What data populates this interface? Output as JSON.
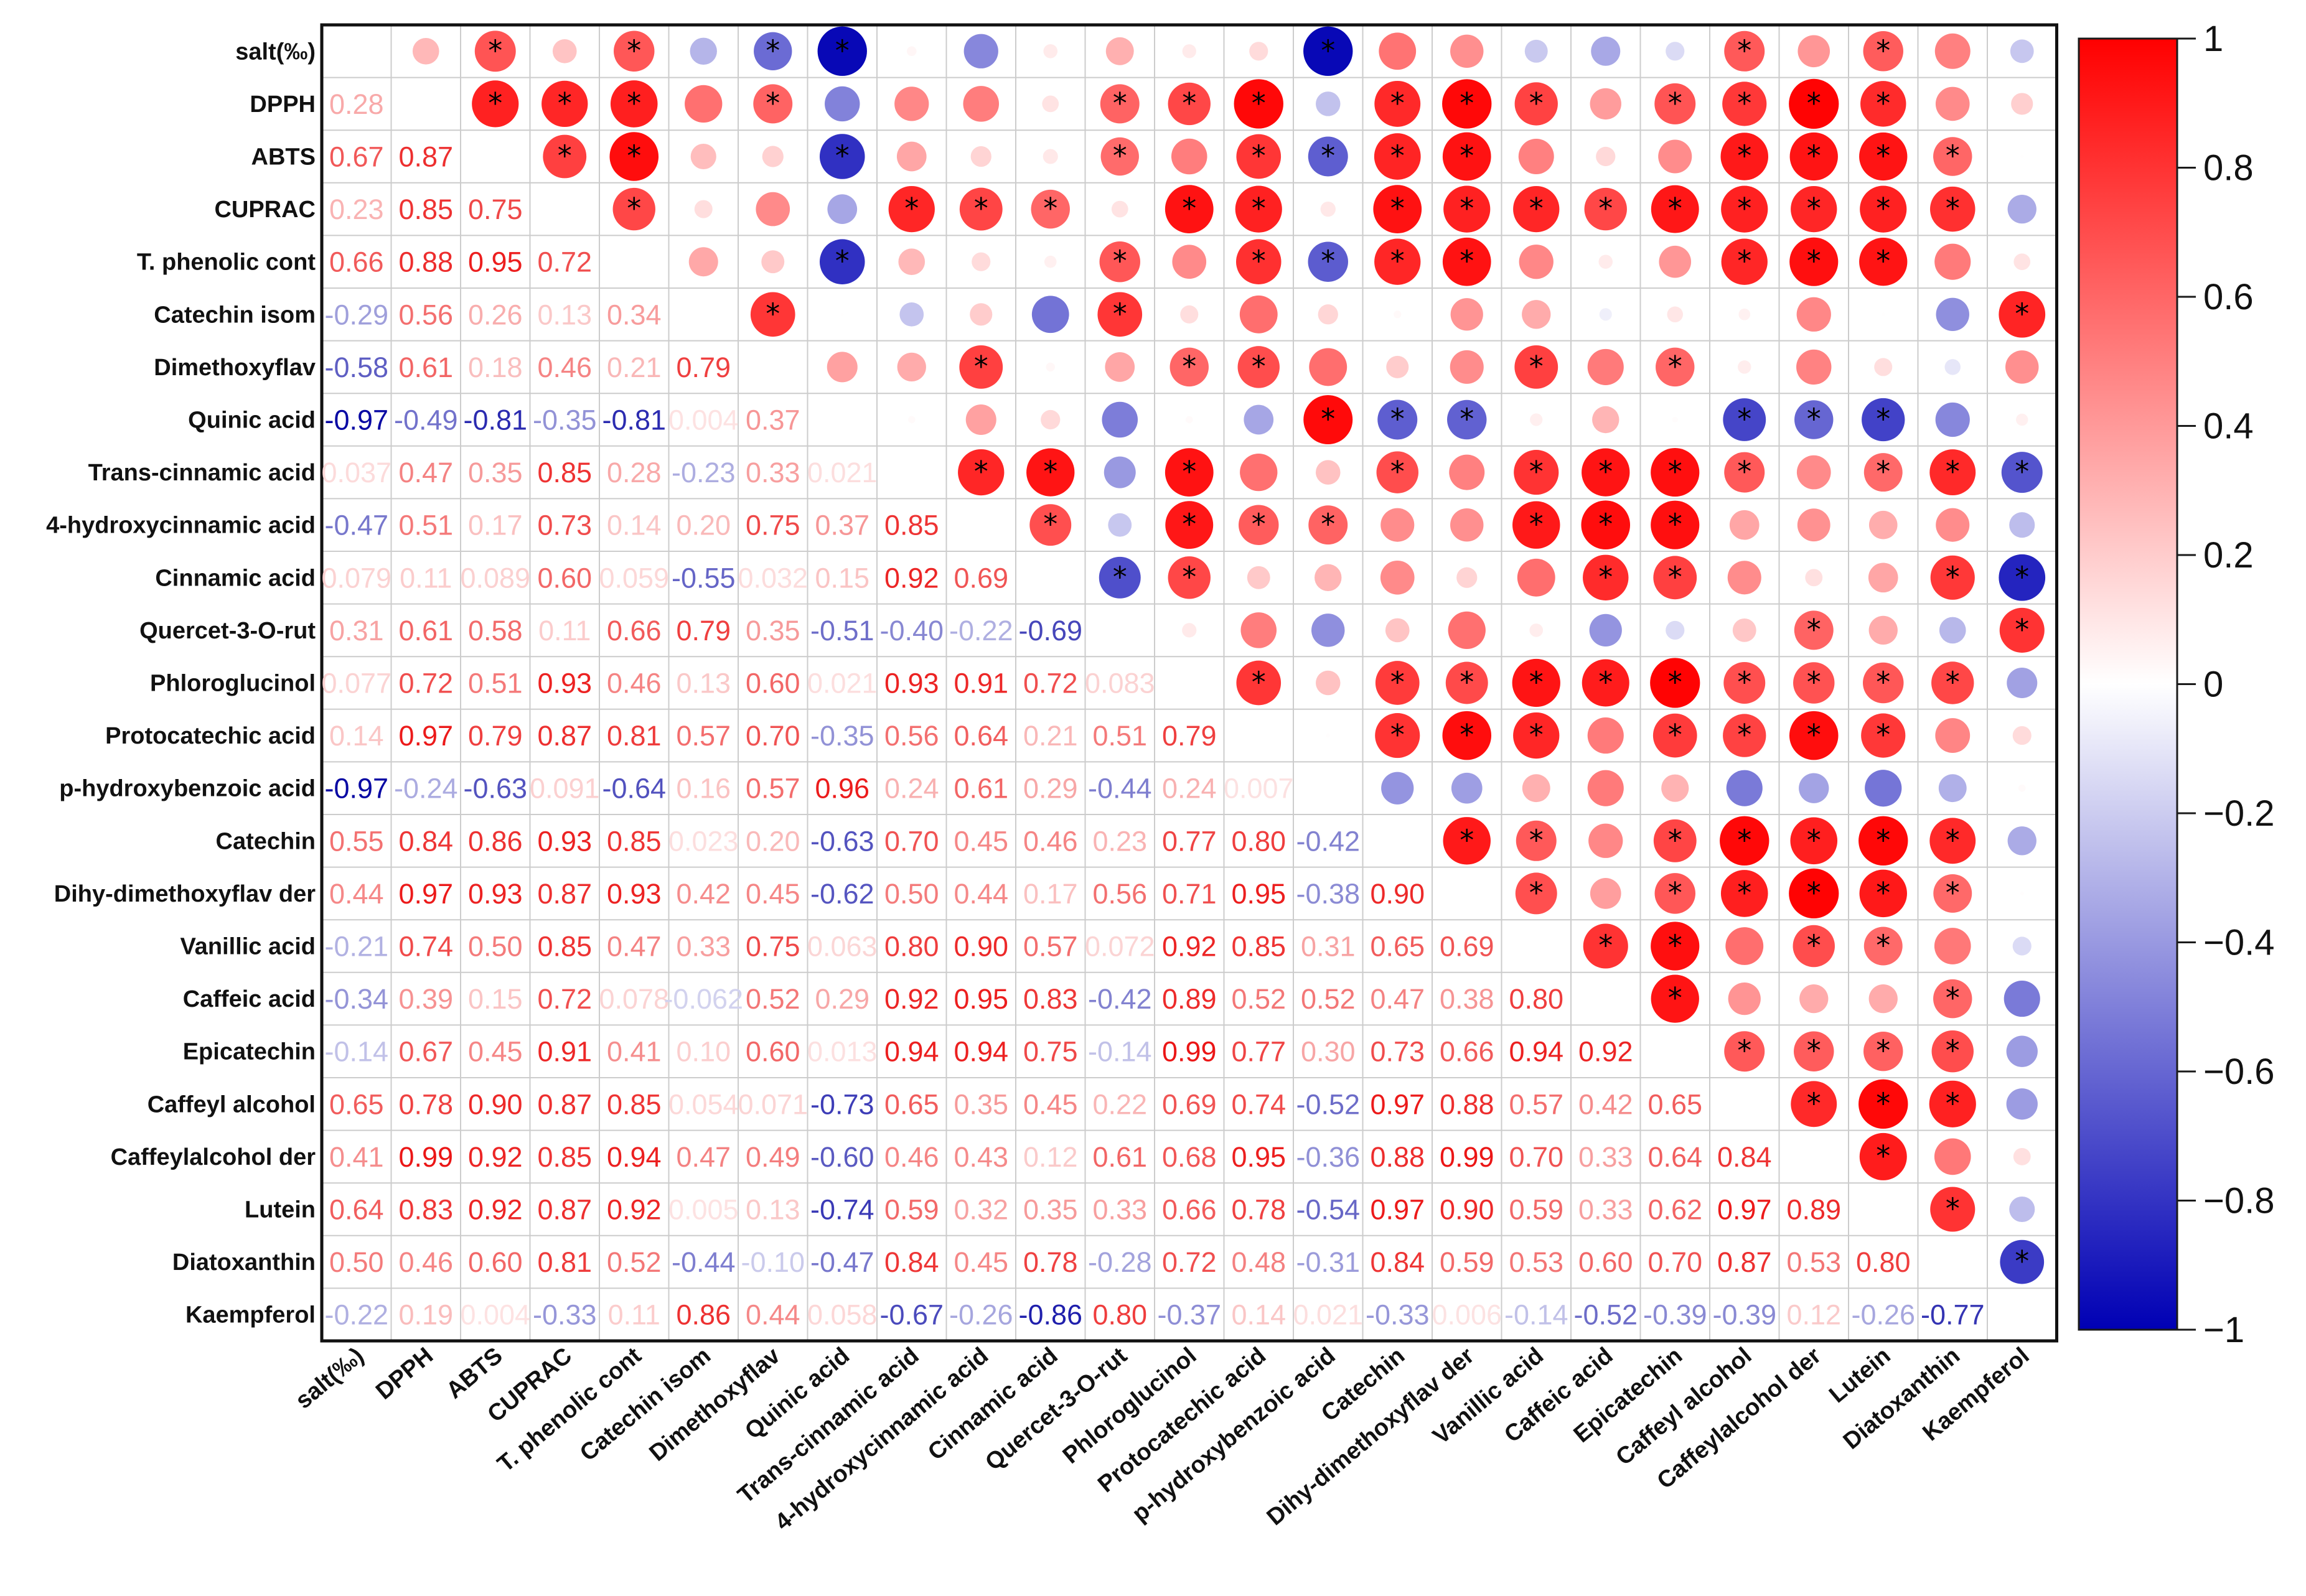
{
  "chart_data": {
    "type": "heatmap",
    "title": "",
    "variables": [
      "salt(‰)",
      "DPPH",
      "ABTS",
      "CUPRAC",
      "T. phenolic cont",
      "Catechin isom",
      "Dimethoxyflav",
      "Quinic acid",
      "Trans-cinnamic acid",
      "4-hydroxycinnamic acid",
      "Cinnamic acid",
      "Quercet-3-O-rut",
      "Phloroglucinol",
      "Protocatechic acid",
      "p-hydroxybenzoic acid",
      "Catechin",
      "Dihy-dimethoxyflav der",
      "Vanillic acid",
      "Caffeic acid",
      "Epicatechin",
      "Caffeyl alcohol",
      "Caffeylalcohol der",
      "Lutein",
      "Diatoxanthin",
      "Kaempferol"
    ],
    "lower_triangle_labels": [
      [],
      [
        "0.28"
      ],
      [
        "0.67",
        "0.87"
      ],
      [
        "0.23",
        "0.85",
        "0.75"
      ],
      [
        "0.66",
        "0.88",
        "0.95",
        "0.72"
      ],
      [
        "-0.29",
        "0.56",
        "0.26",
        "0.13",
        "0.34"
      ],
      [
        "-0.58",
        "0.61",
        "0.18",
        "0.46",
        "0.21",
        "0.79"
      ],
      [
        "-0.97",
        "-0.49",
        "-0.81",
        "-0.35",
        "-0.81",
        "0.004",
        "0.37"
      ],
      [
        "0.037",
        "0.47",
        "0.35",
        "0.85",
        "0.28",
        "-0.23",
        "0.33",
        "0.021"
      ],
      [
        "-0.47",
        "0.51",
        "0.17",
        "0.73",
        "0.14",
        "0.20",
        "0.75",
        "0.37",
        "0.85"
      ],
      [
        "0.079",
        "0.11",
        "0.089",
        "0.60",
        "0.059",
        "-0.55",
        "0.032",
        "0.15",
        "0.92",
        "0.69"
      ],
      [
        "0.31",
        "0.61",
        "0.58",
        "0.11",
        "0.66",
        "0.79",
        "0.35",
        "-0.51",
        "-0.40",
        "-0.22",
        "-0.69"
      ],
      [
        "0.077",
        "0.72",
        "0.51",
        "0.93",
        "0.46",
        "0.13",
        "0.60",
        "0.021",
        "0.93",
        "0.91",
        "0.72",
        "0.083"
      ],
      [
        "0.14",
        "0.97",
        "0.79",
        "0.87",
        "0.81",
        "0.57",
        "0.70",
        "-0.35",
        "0.56",
        "0.64",
        "0.21",
        "0.51",
        "0.79"
      ],
      [
        "-0.97",
        "-0.24",
        "-0.63",
        "0.091",
        "-0.64",
        "0.16",
        "0.57",
        "0.96",
        "0.24",
        "0.61",
        "0.29",
        "-0.44",
        "0.24",
        "0.007"
      ],
      [
        "0.55",
        "0.84",
        "0.86",
        "0.93",
        "0.85",
        "0.023",
        "0.20",
        "-0.63",
        "0.70",
        "0.45",
        "0.46",
        "0.23",
        "0.77",
        "0.80",
        "-0.42"
      ],
      [
        "0.44",
        "0.97",
        "0.93",
        "0.87",
        "0.93",
        "0.42",
        "0.45",
        "-0.62",
        "0.50",
        "0.44",
        "0.17",
        "0.56",
        "0.71",
        "0.95",
        "-0.38",
        "0.90"
      ],
      [
        "-0.21",
        "0.74",
        "0.50",
        "0.85",
        "0.47",
        "0.33",
        "0.75",
        "0.063",
        "0.80",
        "0.90",
        "0.57",
        "0.072",
        "0.92",
        "0.85",
        "0.31",
        "0.65",
        "0.69"
      ],
      [
        "-0.34",
        "0.39",
        "0.15",
        "0.72",
        "0.078",
        "-0.062",
        "0.52",
        "0.29",
        "0.92",
        "0.95",
        "0.83",
        "-0.42",
        "0.89",
        "0.52",
        "0.52",
        "0.47",
        "0.38",
        "0.80"
      ],
      [
        "-0.14",
        "0.67",
        "0.45",
        "0.91",
        "0.41",
        "0.10",
        "0.60",
        "0.013",
        "0.94",
        "0.94",
        "0.75",
        "-0.14",
        "0.99",
        "0.77",
        "0.30",
        "0.73",
        "0.66",
        "0.94",
        "0.92"
      ],
      [
        "0.65",
        "0.78",
        "0.90",
        "0.87",
        "0.85",
        "0.054",
        "0.071",
        "-0.73",
        "0.65",
        "0.35",
        "0.45",
        "0.22",
        "0.69",
        "0.74",
        "-0.52",
        "0.97",
        "0.88",
        "0.57",
        "0.42",
        "0.65"
      ],
      [
        "0.41",
        "0.99",
        "0.92",
        "0.85",
        "0.94",
        "0.47",
        "0.49",
        "-0.60",
        "0.46",
        "0.43",
        "0.12",
        "0.61",
        "0.68",
        "0.95",
        "-0.36",
        "0.88",
        "0.99",
        "0.70",
        "0.33",
        "0.64",
        "0.84"
      ],
      [
        "0.64",
        "0.83",
        "0.92",
        "0.87",
        "0.92",
        "0.005",
        "0.13",
        "-0.74",
        "0.59",
        "0.32",
        "0.35",
        "0.33",
        "0.66",
        "0.78",
        "-0.54",
        "0.97",
        "0.90",
        "0.59",
        "0.33",
        "0.62",
        "0.97",
        "0.89"
      ],
      [
        "0.50",
        "0.46",
        "0.60",
        "0.81",
        "0.52",
        "-0.44",
        "-0.10",
        "-0.47",
        "0.84",
        "0.45",
        "0.78",
        "-0.28",
        "0.72",
        "0.48",
        "-0.31",
        "0.84",
        "0.59",
        "0.53",
        "0.60",
        "0.70",
        "0.87",
        "0.53",
        "0.80"
      ],
      [
        "-0.22",
        "0.19",
        "0.004",
        "-0.33",
        "0.11",
        "0.86",
        "0.44",
        "0.058",
        "-0.67",
        "-0.26",
        "-0.86",
        "0.80",
        "-0.37",
        "0.14",
        "0.021",
        "-0.33",
        "0.006",
        "-0.14",
        "-0.52",
        "-0.39",
        "-0.39",
        "0.12",
        "-0.26",
        "-0.77"
      ]
    ],
    "significance_marker": "*",
    "significant_pairs": [
      [
        "DPPH",
        "ABTS"
      ],
      [
        "DPPH",
        "CUPRAC"
      ],
      [
        "DPPH",
        "T. phenolic cont"
      ],
      [
        "ABTS",
        "CUPRAC"
      ],
      [
        "ABTS",
        "T. phenolic cont"
      ],
      [
        "CUPRAC",
        "T. phenolic cont"
      ],
      [
        "salt(‰)",
        "ABTS"
      ],
      [
        "salt(‰)",
        "T. phenolic cont"
      ],
      [
        "salt(‰)",
        "Quinic acid"
      ],
      [
        "salt(‰)",
        "p-hydroxybenzoic acid"
      ],
      [
        "salt(‰)",
        "Dimethoxyflav"
      ],
      [
        "salt(‰)",
        "Caffeyl alcohol"
      ],
      [
        "salt(‰)",
        "Lutein"
      ],
      [
        "DPPH",
        "Dimethoxyflav"
      ],
      [
        "DPPH",
        "Quercet-3-O-rut"
      ],
      [
        "DPPH",
        "Phloroglucinol"
      ],
      [
        "DPPH",
        "Protocatechic acid"
      ],
      [
        "DPPH",
        "Catechin"
      ],
      [
        "DPPH",
        "Dihy-dimethoxyflav der"
      ],
      [
        "DPPH",
        "Vanillic acid"
      ],
      [
        "DPPH",
        "Epicatechin"
      ],
      [
        "DPPH",
        "Caffeyl alcohol"
      ],
      [
        "DPPH",
        "Caffeylalcohol der"
      ],
      [
        "DPPH",
        "Lutein"
      ],
      [
        "ABTS",
        "Quinic acid"
      ],
      [
        "ABTS",
        "Quercet-3-O-rut"
      ],
      [
        "ABTS",
        "Protocatechic acid"
      ],
      [
        "ABTS",
        "p-hydroxybenzoic acid"
      ],
      [
        "ABTS",
        "Catechin"
      ],
      [
        "ABTS",
        "Dihy-dimethoxyflav der"
      ],
      [
        "ABTS",
        "Caffeyl alcohol"
      ],
      [
        "ABTS",
        "Caffeylalcohol der"
      ],
      [
        "ABTS",
        "Lutein"
      ],
      [
        "ABTS",
        "Diatoxanthin"
      ],
      [
        "CUPRAC",
        "Trans-cinnamic acid"
      ],
      [
        "CUPRAC",
        "4-hydroxycinnamic acid"
      ],
      [
        "CUPRAC",
        "Cinnamic acid"
      ],
      [
        "CUPRAC",
        "Phloroglucinol"
      ],
      [
        "CUPRAC",
        "Protocatechic acid"
      ],
      [
        "CUPRAC",
        "Catechin"
      ],
      [
        "CUPRAC",
        "Dihy-dimethoxyflav der"
      ],
      [
        "CUPRAC",
        "Vanillic acid"
      ],
      [
        "CUPRAC",
        "Caffeic acid"
      ],
      [
        "CUPRAC",
        "Epicatechin"
      ],
      [
        "CUPRAC",
        "Caffeyl alcohol"
      ],
      [
        "CUPRAC",
        "Caffeylalcohol der"
      ],
      [
        "CUPRAC",
        "Lutein"
      ],
      [
        "CUPRAC",
        "Diatoxanthin"
      ],
      [
        "T. phenolic cont",
        "Quinic acid"
      ],
      [
        "T. phenolic cont",
        "Quercet-3-O-rut"
      ],
      [
        "T. phenolic cont",
        "Protocatechic acid"
      ],
      [
        "T. phenolic cont",
        "p-hydroxybenzoic acid"
      ],
      [
        "T. phenolic cont",
        "Catechin"
      ],
      [
        "T. phenolic cont",
        "Dihy-dimethoxyflav der"
      ],
      [
        "T. phenolic cont",
        "Caffeyl alcohol"
      ],
      [
        "T. phenolic cont",
        "Caffeylalcohol der"
      ],
      [
        "T. phenolic cont",
        "Lutein"
      ],
      [
        "Catechin isom",
        "Dimethoxyflav"
      ],
      [
        "Catechin isom",
        "Quercet-3-O-rut"
      ],
      [
        "Catechin isom",
        "Kaempferol"
      ],
      [
        "Dimethoxyflav",
        "4-hydroxycinnamic acid"
      ],
      [
        "Dimethoxyflav",
        "Phloroglucinol"
      ],
      [
        "Dimethoxyflav",
        "Protocatechic acid"
      ],
      [
        "Dimethoxyflav",
        "Vanillic acid"
      ],
      [
        "Dimethoxyflav",
        "Epicatechin"
      ],
      [
        "Quinic acid",
        "p-hydroxybenzoic acid"
      ],
      [
        "Quinic acid",
        "Catechin"
      ],
      [
        "Quinic acid",
        "Dihy-dimethoxyflav der"
      ],
      [
        "Quinic acid",
        "Caffeyl alcohol"
      ],
      [
        "Quinic acid",
        "Caffeylalcohol der"
      ],
      [
        "Quinic acid",
        "Lutein"
      ],
      [
        "Trans-cinnamic acid",
        "4-hydroxycinnamic acid"
      ],
      [
        "Trans-cinnamic acid",
        "Cinnamic acid"
      ],
      [
        "Trans-cinnamic acid",
        "Phloroglucinol"
      ],
      [
        "Trans-cinnamic acid",
        "Catechin"
      ],
      [
        "Trans-cinnamic acid",
        "Vanillic acid"
      ],
      [
        "Trans-cinnamic acid",
        "Caffeic acid"
      ],
      [
        "Trans-cinnamic acid",
        "Epicatechin"
      ],
      [
        "Trans-cinnamic acid",
        "Caffeyl alcohol"
      ],
      [
        "Trans-cinnamic acid",
        "Lutein"
      ],
      [
        "Trans-cinnamic acid",
        "Diatoxanthin"
      ],
      [
        "Trans-cinnamic acid",
        "Kaempferol"
      ],
      [
        "4-hydroxycinnamic acid",
        "Cinnamic acid"
      ],
      [
        "4-hydroxycinnamic acid",
        "Phloroglucinol"
      ],
      [
        "4-hydroxycinnamic acid",
        "Protocatechic acid"
      ],
      [
        "4-hydroxycinnamic acid",
        "p-hydroxybenzoic acid"
      ],
      [
        "4-hydroxycinnamic acid",
        "Vanillic acid"
      ],
      [
        "4-hydroxycinnamic acid",
        "Caffeic acid"
      ],
      [
        "4-hydroxycinnamic acid",
        "Epicatechin"
      ],
      [
        "Cinnamic acid",
        "Quercet-3-O-rut"
      ],
      [
        "Cinnamic acid",
        "Phloroglucinol"
      ],
      [
        "Cinnamic acid",
        "Caffeic acid"
      ],
      [
        "Cinnamic acid",
        "Epicatechin"
      ],
      [
        "Cinnamic acid",
        "Diatoxanthin"
      ],
      [
        "Cinnamic acid",
        "Kaempferol"
      ],
      [
        "Quercet-3-O-rut",
        "Caffeylalcohol der"
      ],
      [
        "Quercet-3-O-rut",
        "Kaempferol"
      ],
      [
        "Phloroglucinol",
        "Protocatechic acid"
      ],
      [
        "Phloroglucinol",
        "Catechin"
      ],
      [
        "Phloroglucinol",
        "Dihy-dimethoxyflav der"
      ],
      [
        "Phloroglucinol",
        "Vanillic acid"
      ],
      [
        "Phloroglucinol",
        "Caffeic acid"
      ],
      [
        "Phloroglucinol",
        "Epicatechin"
      ],
      [
        "Phloroglucinol",
        "Caffeyl alcohol"
      ],
      [
        "Phloroglucinol",
        "Caffeylalcohol der"
      ],
      [
        "Phloroglucinol",
        "Lutein"
      ],
      [
        "Phloroglucinol",
        "Diatoxanthin"
      ],
      [
        "Protocatechic acid",
        "Catechin"
      ],
      [
        "Protocatechic acid",
        "Dihy-dimethoxyflav der"
      ],
      [
        "Protocatechic acid",
        "Vanillic acid"
      ],
      [
        "Protocatechic acid",
        "Epicatechin"
      ],
      [
        "Protocatechic acid",
        "Caffeyl alcohol"
      ],
      [
        "Protocatechic acid",
        "Caffeylalcohol der"
      ],
      [
        "Protocatechic acid",
        "Lutein"
      ],
      [
        "Catechin",
        "Dihy-dimethoxyflav der"
      ],
      [
        "Catechin",
        "Vanillic acid"
      ],
      [
        "Catechin",
        "Epicatechin"
      ],
      [
        "Catechin",
        "Caffeyl alcohol"
      ],
      [
        "Catechin",
        "Caffeylalcohol der"
      ],
      [
        "Catechin",
        "Lutein"
      ],
      [
        "Catechin",
        "Diatoxanthin"
      ],
      [
        "Dihy-dimethoxyflav der",
        "Vanillic acid"
      ],
      [
        "Dihy-dimethoxyflav der",
        "Epicatechin"
      ],
      [
        "Dihy-dimethoxyflav der",
        "Caffeyl alcohol"
      ],
      [
        "Dihy-dimethoxyflav der",
        "Caffeylalcohol der"
      ],
      [
        "Dihy-dimethoxyflav der",
        "Lutein"
      ],
      [
        "Dihy-dimethoxyflav der",
        "Diatoxanthin"
      ],
      [
        "Vanillic acid",
        "Caffeic acid"
      ],
      [
        "Vanillic acid",
        "Epicatechin"
      ],
      [
        "Vanillic acid",
        "Caffeylalcohol der"
      ],
      [
        "Vanillic acid",
        "Lutein"
      ],
      [
        "Caffeic acid",
        "Epicatechin"
      ],
      [
        "Caffeic acid",
        "Diatoxanthin"
      ],
      [
        "Epicatechin",
        "Caffeyl alcohol"
      ],
      [
        "Epicatechin",
        "Caffeylalcohol der"
      ],
      [
        "Epicatechin",
        "Lutein"
      ],
      [
        "Epicatechin",
        "Diatoxanthin"
      ],
      [
        "Caffeyl alcohol",
        "Caffeylalcohol der"
      ],
      [
        "Caffeyl alcohol",
        "Lutein"
      ],
      [
        "Caffeyl alcohol",
        "Diatoxanthin"
      ],
      [
        "Caffeylalcohol der",
        "Lutein"
      ],
      [
        "Lutein",
        "Diatoxanthin"
      ],
      [
        "Diatoxanthin",
        "Kaempferol"
      ]
    ],
    "colorbar": {
      "range": [
        -1,
        1
      ],
      "ticks": [
        "1",
        "0.8",
        "0.6",
        "0.4",
        "0.2",
        "0",
        "−0.2",
        "−0.4",
        "−0.6",
        "−0.8",
        "−1"
      ],
      "colors": {
        "positive": "#ff0000",
        "zero": "#ffffff",
        "negative": "#0000b4"
      }
    }
  }
}
